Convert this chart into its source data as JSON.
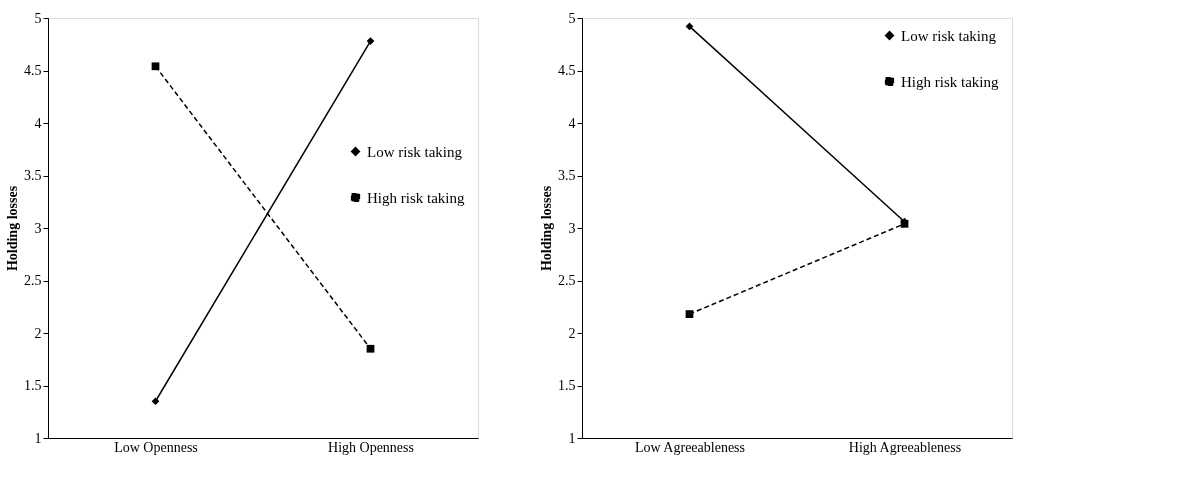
{
  "chart_data": [
    {
      "type": "line",
      "ylabel": "Holding losses",
      "categories": [
        "Low Openness",
        "High Openness"
      ],
      "ylim": [
        1,
        5
      ],
      "yticks": [
        1,
        1.5,
        2,
        2.5,
        3,
        3.5,
        4,
        4.5,
        5
      ],
      "grid": false,
      "legend": "right",
      "series": [
        {
          "name": "Low risk taking",
          "color": "#000000",
          "values": [
            1.35,
            4.78
          ],
          "marker": "diamond",
          "line_style": "solid"
        },
        {
          "name": "High risk taking",
          "color": "#000000",
          "values": [
            4.54,
            1.85
          ],
          "marker": "square",
          "line_style": "dashed"
        }
      ]
    },
    {
      "type": "line",
      "ylabel": "Holding losses",
      "categories": [
        "Low Agreeableness",
        "High Agreeableness"
      ],
      "ylim": [
        1,
        5
      ],
      "yticks": [
        1,
        1.5,
        2,
        2.5,
        3,
        3.5,
        4,
        4.5,
        5
      ],
      "grid": false,
      "legend": "top right",
      "series": [
        {
          "name": "Low risk taking",
          "color": "#000000",
          "values": [
            4.92,
            3.06
          ],
          "marker": "diamond",
          "line_style": "solid"
        },
        {
          "name": "High risk taking",
          "color": "#000000",
          "values": [
            2.18,
            3.04
          ],
          "marker": "square",
          "line_style": "dashed"
        }
      ]
    }
  ]
}
